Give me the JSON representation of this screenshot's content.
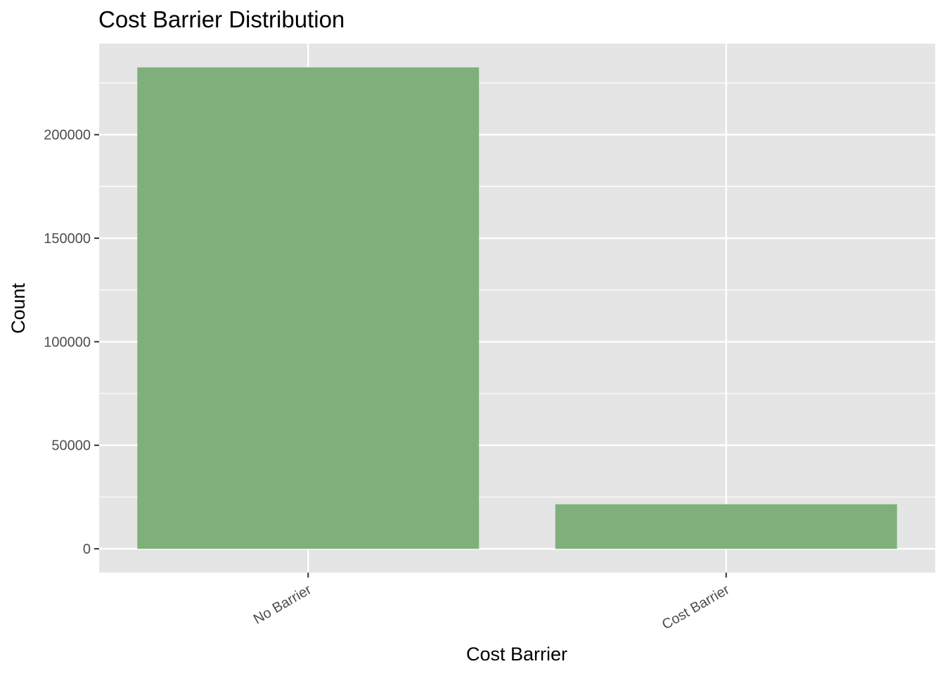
{
  "chart_data": {
    "type": "bar",
    "title": "Cost Barrier Distribution",
    "xlabel": "Cost Barrier",
    "ylabel": "Count",
    "categories": [
      "No Barrier",
      "Cost Barrier"
    ],
    "values": [
      232500,
      21500
    ],
    "ylim": [
      -11500,
      244000
    ],
    "yticks": [
      0,
      50000,
      100000,
      150000,
      200000
    ],
    "ytick_labels": [
      "0",
      "50000",
      "100000",
      "150000",
      "200000"
    ],
    "grid": true,
    "bar_color": "#7FB07B",
    "panel_background": "#E5E5E5",
    "grid_color": "#FFFFFF",
    "legend": "none"
  }
}
